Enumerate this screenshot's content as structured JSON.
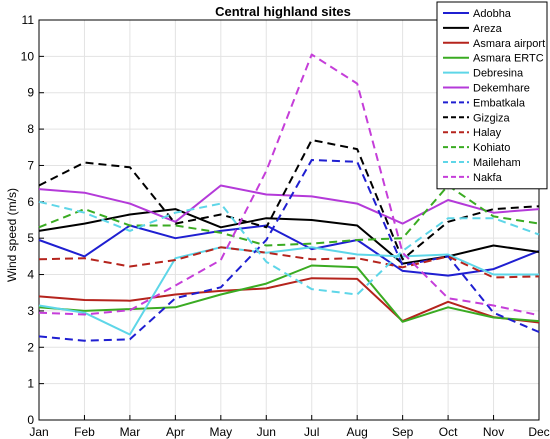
{
  "chart_data": {
    "type": "line",
    "title": "Central highland sites",
    "xlabel": "",
    "ylabel": "Wind speed (m/s)",
    "ylim": [
      0,
      11
    ],
    "yticks": [
      "0",
      "1",
      "2",
      "3",
      "4",
      "5",
      "6",
      "7",
      "8",
      "9",
      "10",
      "11"
    ],
    "categories": [
      "Jan",
      "Feb",
      "Mar",
      "Apr",
      "May",
      "Jun",
      "Jul",
      "Aug",
      "Sep",
      "Oct",
      "Nov",
      "Dec"
    ],
    "grid": "on",
    "legend_position": "top-right",
    "series": [
      {
        "name": "Adobha",
        "color": "#1f1fd1",
        "dash": "solid",
        "values": [
          4.95,
          4.5,
          5.35,
          5.0,
          5.2,
          5.35,
          4.7,
          4.95,
          4.1,
          3.97,
          4.15,
          4.65
        ]
      },
      {
        "name": "Areza",
        "color": "#000000",
        "dash": "solid",
        "values": [
          5.2,
          5.4,
          5.65,
          5.8,
          5.3,
          5.55,
          5.5,
          5.35,
          4.3,
          4.5,
          4.8,
          4.62
        ]
      },
      {
        "name": "Asmara airport",
        "color": "#b5241d",
        "dash": "solid",
        "values": [
          3.4,
          3.3,
          3.28,
          3.45,
          3.55,
          3.62,
          3.9,
          3.88,
          2.72,
          3.25,
          2.83,
          2.68
        ]
      },
      {
        "name": "Asmara ERTC",
        "color": "#3aab22",
        "dash": "solid",
        "values": [
          3.1,
          3.0,
          3.05,
          3.1,
          3.45,
          3.75,
          4.25,
          4.2,
          2.7,
          3.1,
          2.82,
          2.72
        ]
      },
      {
        "name": "Debresina",
        "color": "#5ed6e8",
        "dash": "solid",
        "values": [
          3.15,
          2.95,
          2.35,
          4.45,
          4.75,
          4.6,
          4.75,
          4.55,
          4.5,
          4.55,
          4.0,
          4.0
        ]
      },
      {
        "name": "Dekemhare",
        "color": "#b43ad9",
        "dash": "solid",
        "values": [
          6.35,
          6.25,
          5.95,
          5.45,
          6.45,
          6.2,
          6.15,
          5.95,
          5.4,
          6.05,
          5.7,
          5.8
        ]
      },
      {
        "name": "Embatkala",
        "color": "#1f1fd1",
        "dash": "dash",
        "values": [
          2.3,
          2.18,
          2.22,
          3.35,
          3.65,
          4.95,
          7.15,
          7.1,
          4.25,
          4.5,
          2.95,
          2.42
        ]
      },
      {
        "name": "Gizgiza",
        "color": "#000000",
        "dash": "dash",
        "values": [
          6.45,
          7.08,
          6.95,
          5.4,
          5.65,
          5.3,
          7.7,
          7.45,
          4.42,
          5.45,
          5.8,
          5.88
        ]
      },
      {
        "name": "Halay",
        "color": "#b5241d",
        "dash": "dash",
        "values": [
          4.42,
          4.45,
          4.22,
          4.4,
          4.75,
          4.6,
          4.42,
          4.45,
          4.2,
          4.5,
          3.92,
          3.95
        ]
      },
      {
        "name": "Kohiato",
        "color": "#3aab22",
        "dash": "dash",
        "values": [
          5.3,
          5.8,
          5.35,
          5.35,
          5.15,
          4.8,
          4.85,
          4.95,
          5.0,
          6.45,
          5.6,
          5.4
        ]
      },
      {
        "name": "Maileham",
        "color": "#5ed6e8",
        "dash": "dash",
        "values": [
          6.0,
          5.7,
          5.2,
          5.7,
          5.95,
          4.35,
          3.6,
          3.45,
          4.65,
          5.55,
          5.55,
          5.1
        ]
      },
      {
        "name": "Nakfa",
        "color": "#c53ed9",
        "dash": "dash",
        "values": [
          2.95,
          2.9,
          3.02,
          3.7,
          4.4,
          6.85,
          10.05,
          9.25,
          4.6,
          3.35,
          3.15,
          2.88
        ]
      }
    ]
  }
}
